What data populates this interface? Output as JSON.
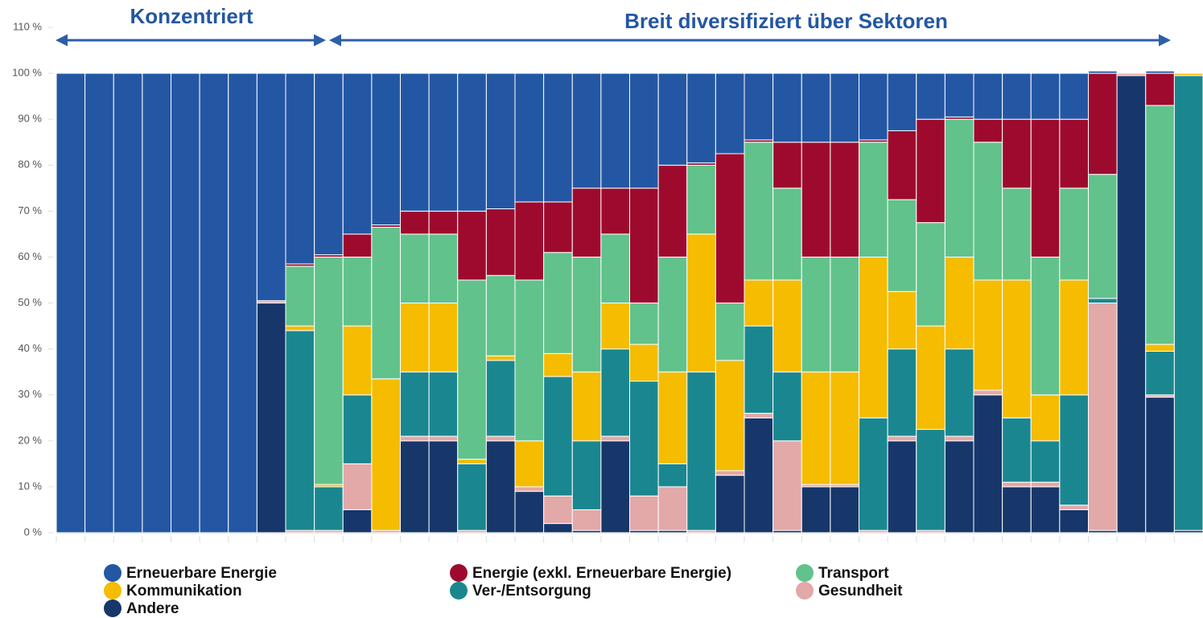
{
  "chart_data": {
    "type": "stacked_bar_100",
    "annotations": [
      "Konzentriert",
      "Breit diversifiziert über Sektoren"
    ],
    "ylim": [
      0,
      110
    ],
    "yticks": [
      {
        "value": 0,
        "label": "0 %"
      },
      {
        "value": 10,
        "label": "10 %"
      },
      {
        "value": 20,
        "label": "20 %"
      },
      {
        "value": 30,
        "label": "30 %"
      },
      {
        "value": 40,
        "label": "40 %"
      },
      {
        "value": 50,
        "label": "50 %"
      },
      {
        "value": 60,
        "label": "60 %"
      },
      {
        "value": 70,
        "label": "70 %"
      },
      {
        "value": 80,
        "label": "80 %"
      },
      {
        "value": 90,
        "label": "90 %"
      },
      {
        "value": 100,
        "label": "100 %"
      },
      {
        "value": 110,
        "label": "110 %"
      }
    ],
    "grid": false,
    "legend": "bottom",
    "series": [
      {
        "name": "Erneuerbare Energie",
        "color": "#2457a3",
        "values": [
          100,
          100,
          100,
          100,
          100,
          100,
          100,
          49.5,
          41.5,
          39.5,
          35,
          33,
          30,
          30,
          30,
          29.5,
          28,
          28,
          25,
          25,
          25,
          20,
          19.5,
          17.5,
          14.5,
          15,
          15,
          15,
          14.5,
          12.5,
          10,
          9.5,
          10,
          10,
          10,
          10,
          0.5,
          0,
          0.5,
          0
        ]
      },
      {
        "name": "Energie (exkl. Erneuerbare Energie)",
        "color": "#9e0a2e",
        "values": [
          0,
          0,
          0,
          0,
          0,
          0,
          0,
          0,
          0.5,
          0.5,
          5,
          0.5,
          5,
          5,
          15,
          14.5,
          17,
          11,
          15,
          10,
          25,
          20,
          0.5,
          32.5,
          0.5,
          10,
          25,
          25,
          0.5,
          15,
          22.5,
          0.5,
          5,
          15,
          30,
          15,
          22,
          0,
          7,
          0
        ]
      },
      {
        "name": "Transport",
        "color": "#62c28b",
        "values": [
          0,
          0,
          0,
          0,
          0,
          0,
          0,
          0,
          13,
          49.5,
          15,
          33,
          15,
          15,
          39,
          17.5,
          35,
          22,
          25,
          15,
          9,
          25,
          15,
          12.5,
          30,
          20,
          25,
          25,
          25,
          20,
          22.5,
          30,
          30,
          20,
          30,
          20,
          27,
          0,
          52,
          0
        ]
      },
      {
        "name": "Kommunikation",
        "color": "#f5bc00",
        "values": [
          0,
          0,
          0,
          0,
          0,
          0,
          0,
          0,
          1,
          0.5,
          15,
          33,
          15,
          15,
          1,
          1,
          10,
          5,
          15,
          10,
          8,
          20,
          30,
          24,
          10,
          20,
          24.5,
          24.5,
          35,
          12.5,
          22.5,
          20,
          24,
          30,
          10,
          25,
          0,
          0,
          1.5,
          0.5
        ]
      },
      {
        "name": "Ver-/Entsorgung",
        "color": "#1a8790",
        "values": [
          0,
          0,
          0,
          0,
          0,
          0,
          0,
          0,
          43.5,
          9.5,
          15,
          0,
          14,
          14,
          14.5,
          16.5,
          0,
          26,
          15,
          19,
          25,
          5,
          34.5,
          0,
          19,
          15,
          0,
          0,
          24.5,
          19,
          22,
          19,
          0,
          14,
          9,
          24,
          1,
          0,
          9.5,
          99
        ]
      },
      {
        "name": "Gesundheit",
        "color": "#e3a8a8",
        "values": [
          0,
          0,
          0,
          0,
          0,
          0,
          0,
          0.5,
          0.5,
          0.5,
          10,
          0.5,
          1,
          1,
          0.5,
          1,
          1,
          6,
          4.5,
          1,
          7.5,
          9.5,
          0.5,
          1,
          1,
          19.5,
          0.5,
          0.5,
          0.5,
          1,
          0.5,
          1,
          1,
          1,
          1,
          1,
          49.5,
          0.5,
          0.5,
          0
        ]
      },
      {
        "name": "Andere",
        "color": "#17376a",
        "values": [
          0,
          0,
          0,
          0,
          0,
          0,
          0,
          50,
          0,
          0,
          5,
          0,
          20,
          20,
          0,
          20,
          9,
          2,
          0.5,
          20,
          0.5,
          0.5,
          0,
          12.5,
          25,
          0.5,
          10,
          10,
          0,
          20,
          0,
          20,
          30,
          10,
          10,
          5,
          0.5,
          99.5,
          29.5,
          0.5
        ]
      }
    ]
  }
}
